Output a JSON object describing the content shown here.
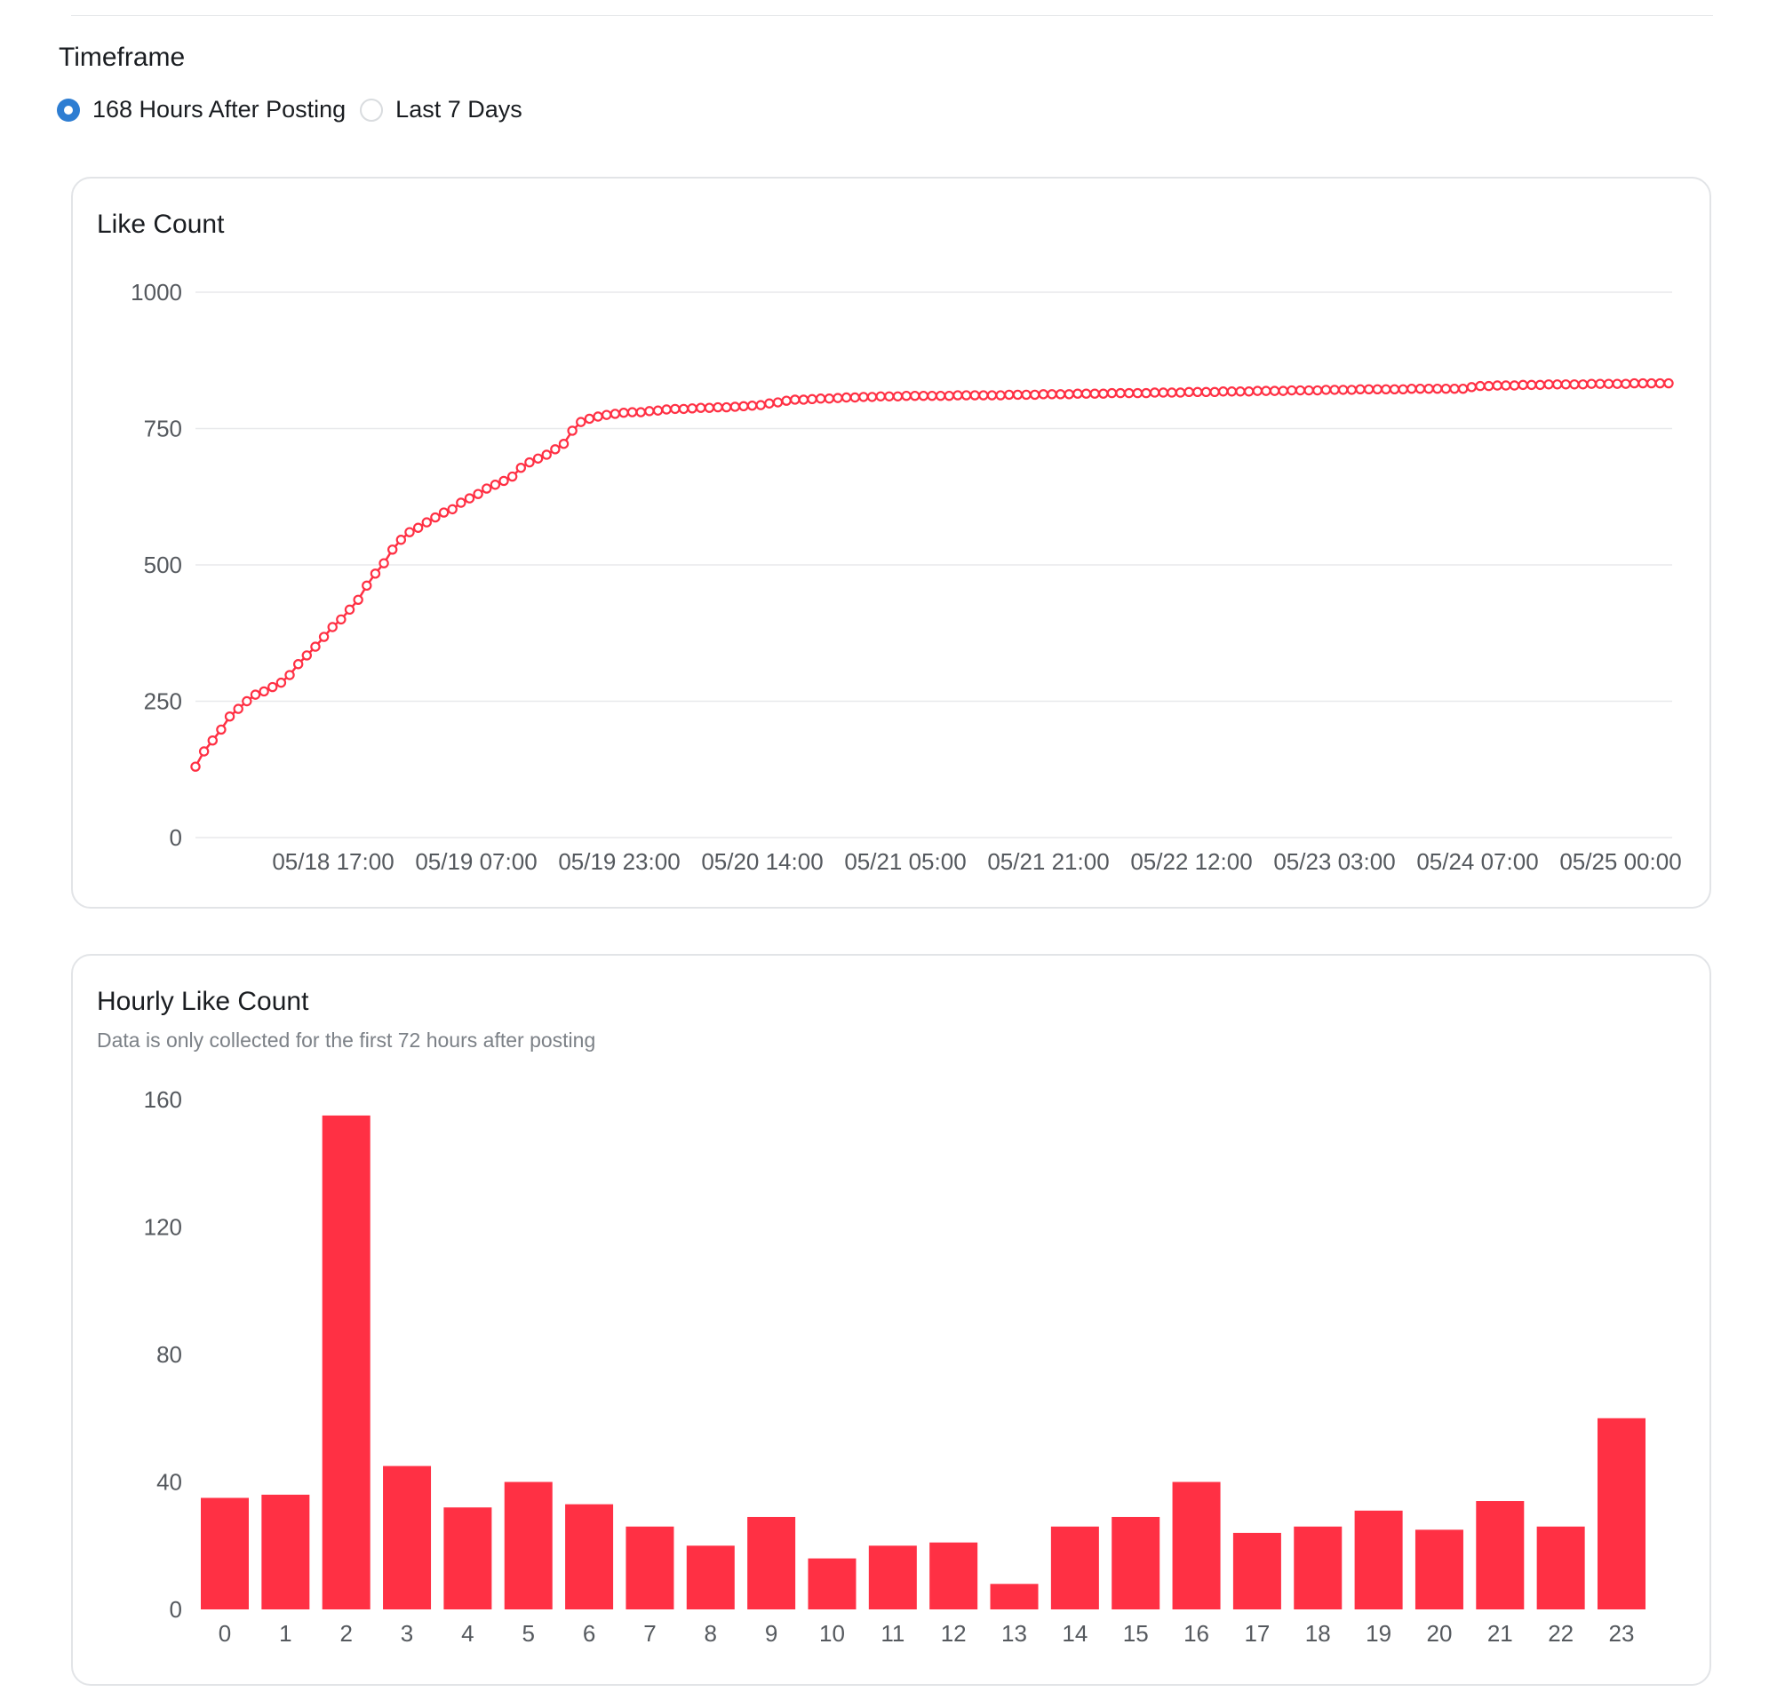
{
  "timeframe": {
    "title": "Timeframe",
    "options": [
      {
        "label": "168 Hours After Posting",
        "selected": true
      },
      {
        "label": "Last 7 Days",
        "selected": false
      }
    ]
  },
  "like_chart_title": "Like Count",
  "hourly_chart_title": "Hourly Like Count",
  "hourly_chart_subtitle": "Data is only collected for the first 72 hours after posting",
  "colors": {
    "accent": "#ff3044",
    "radio_selected": "#2d7dd2",
    "grid": "#e8e9eb"
  },
  "chart_data": [
    {
      "type": "line",
      "title": "Like Count",
      "color": "#ff3044",
      "marker": "hollow-circle",
      "ylim": [
        0,
        1000
      ],
      "yticks": [
        0,
        250,
        500,
        750,
        1000
      ],
      "x_tick_labels": [
        "05/18 17:00",
        "05/19 07:00",
        "05/19 23:00",
        "05/20 14:00",
        "05/21 05:00",
        "05/21 21:00",
        "05/22 12:00",
        "05/23 03:00",
        "05/24 07:00",
        "05/25 00:00"
      ],
      "grid": true,
      "values": [
        130,
        158,
        178,
        198,
        222,
        236,
        250,
        262,
        268,
        276,
        284,
        298,
        318,
        334,
        350,
        368,
        386,
        400,
        418,
        436,
        462,
        484,
        503,
        528,
        546,
        560,
        568,
        578,
        587,
        596,
        602,
        614,
        622,
        630,
        640,
        647,
        654,
        662,
        678,
        688,
        695,
        702,
        712,
        722,
        746,
        762,
        768,
        772,
        775,
        777,
        779,
        780,
        780,
        782,
        783,
        785,
        786,
        786,
        787,
        788,
        788,
        789,
        789,
        790,
        791,
        792,
        793,
        796,
        798,
        801,
        803,
        803,
        804,
        805,
        805,
        806,
        807,
        807,
        808,
        808,
        809,
        809,
        809,
        810,
        810,
        810,
        810,
        810,
        810,
        811,
        811,
        811,
        811,
        811,
        811,
        812,
        812,
        812,
        812,
        813,
        813,
        813,
        813,
        814,
        814,
        814,
        814,
        815,
        815,
        815,
        815,
        815,
        816,
        816,
        816,
        816,
        817,
        817,
        817,
        817,
        818,
        818,
        818,
        818,
        819,
        819,
        819,
        819,
        820,
        820,
        820,
        820,
        821,
        821,
        821,
        821,
        822,
        822,
        822,
        822,
        822,
        822,
        823,
        823,
        823,
        823,
        823,
        823,
        823,
        826,
        828,
        828,
        829,
        829,
        829,
        830,
        830,
        830,
        831,
        831,
        831,
        831,
        831,
        832,
        832,
        832,
        832,
        832,
        833,
        833,
        833,
        833,
        833
      ]
    },
    {
      "type": "bar",
      "title": "Hourly Like Count",
      "subtitle": "Data is only collected for the first 72 hours after posting",
      "color": "#ff3044",
      "categories": [
        "0",
        "1",
        "2",
        "3",
        "4",
        "5",
        "6",
        "7",
        "8",
        "9",
        "10",
        "11",
        "12",
        "13",
        "14",
        "15",
        "16",
        "17",
        "18",
        "19",
        "20",
        "21",
        "22",
        "23"
      ],
      "values": [
        35,
        36,
        155,
        45,
        32,
        40,
        33,
        26,
        20,
        29,
        16,
        20,
        21,
        8,
        26,
        29,
        40,
        24,
        26,
        31,
        25,
        34,
        26,
        60
      ],
      "ylim": [
        0,
        160
      ],
      "yticks": [
        0,
        40,
        80,
        120,
        160
      ],
      "grid": false
    }
  ]
}
